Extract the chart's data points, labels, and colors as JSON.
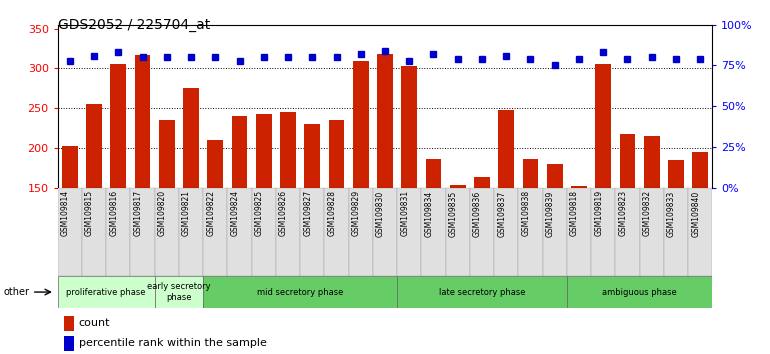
{
  "title": "GDS2052 / 225704_at",
  "samples": [
    "GSM109814",
    "GSM109815",
    "GSM109816",
    "GSM109817",
    "GSM109820",
    "GSM109821",
    "GSM109822",
    "GSM109824",
    "GSM109825",
    "GSM109826",
    "GSM109827",
    "GSM109828",
    "GSM109829",
    "GSM109830",
    "GSM109831",
    "GSM109834",
    "GSM109835",
    "GSM109836",
    "GSM109837",
    "GSM109838",
    "GSM109839",
    "GSM109818",
    "GSM109819",
    "GSM109823",
    "GSM109832",
    "GSM109833",
    "GSM109840"
  ],
  "count_values": [
    202,
    255,
    305,
    317,
    235,
    275,
    210,
    240,
    243,
    245,
    230,
    235,
    310,
    318,
    303,
    186,
    153,
    163,
    248,
    186,
    180,
    152,
    305,
    217,
    215,
    185,
    195
  ],
  "percentile_values": [
    78,
    81,
    83,
    80,
    80,
    80,
    80,
    78,
    80,
    80,
    80,
    80,
    82,
    84,
    78,
    82,
    79,
    79,
    81,
    79,
    75,
    79,
    83,
    79,
    80,
    79,
    79
  ],
  "phase_data": [
    {
      "name": "proliferative phase",
      "start": 0,
      "end": 4,
      "color": "#ccffcc"
    },
    {
      "name": "early secretory\nphase",
      "start": 4,
      "end": 6,
      "color": "#ddffdd"
    },
    {
      "name": "mid secretory phase",
      "start": 6,
      "end": 14,
      "color": "#88cc88"
    },
    {
      "name": "late secretory phase",
      "start": 14,
      "end": 21,
      "color": "#88cc88"
    },
    {
      "name": "ambiguous phase",
      "start": 21,
      "end": 27,
      "color": "#88cc88"
    }
  ],
  "ylim_left": [
    150,
    355
  ],
  "ylim_right": [
    0,
    100
  ],
  "yticks_left": [
    150,
    200,
    250,
    300,
    350
  ],
  "yticks_right": [
    0,
    25,
    50,
    75,
    100
  ],
  "bar_color": "#cc2200",
  "dot_color": "#0000cc",
  "background_color": "#ffffff"
}
